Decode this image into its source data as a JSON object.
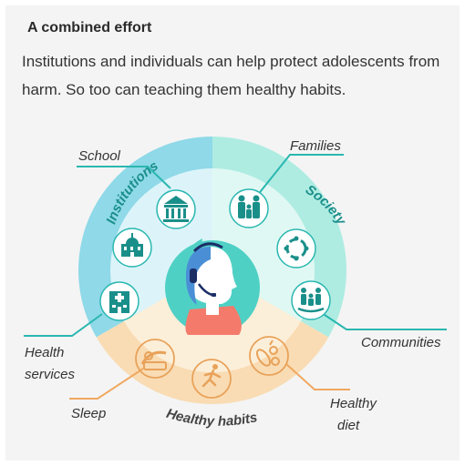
{
  "header": {
    "title": "A combined effort",
    "subtitle": "Institutions and individuals can help protect adolescents from harm. So too can teaching them healthy habits."
  },
  "ring_labels": {
    "institutions": "Institutions",
    "society": "Society",
    "healthy_habits": "Healthy habits"
  },
  "callouts": {
    "school": "School",
    "families": "Families",
    "health_services_1": "Health",
    "health_services_2": "services",
    "communities": "Communities",
    "sleep": "Sleep",
    "healthy_diet_1": "Healthy",
    "healthy_diet_2": "diet"
  },
  "icons": [
    "school-building-icon",
    "civic-building-icon",
    "hospital-icon",
    "family-icon",
    "community-circle-icon",
    "community-group-icon",
    "sleep-icon",
    "running-icon",
    "food-icon",
    "adolescent-head-icon"
  ],
  "colors": {
    "institutions": "#8fd9e8",
    "society": "#aeece2",
    "habits": "#f9dcb4",
    "icon_teal": "#1a8f8a",
    "icon_orange": "#e8a25a",
    "line_teal": "#2ab7b0",
    "line_orange": "#f0a860"
  }
}
